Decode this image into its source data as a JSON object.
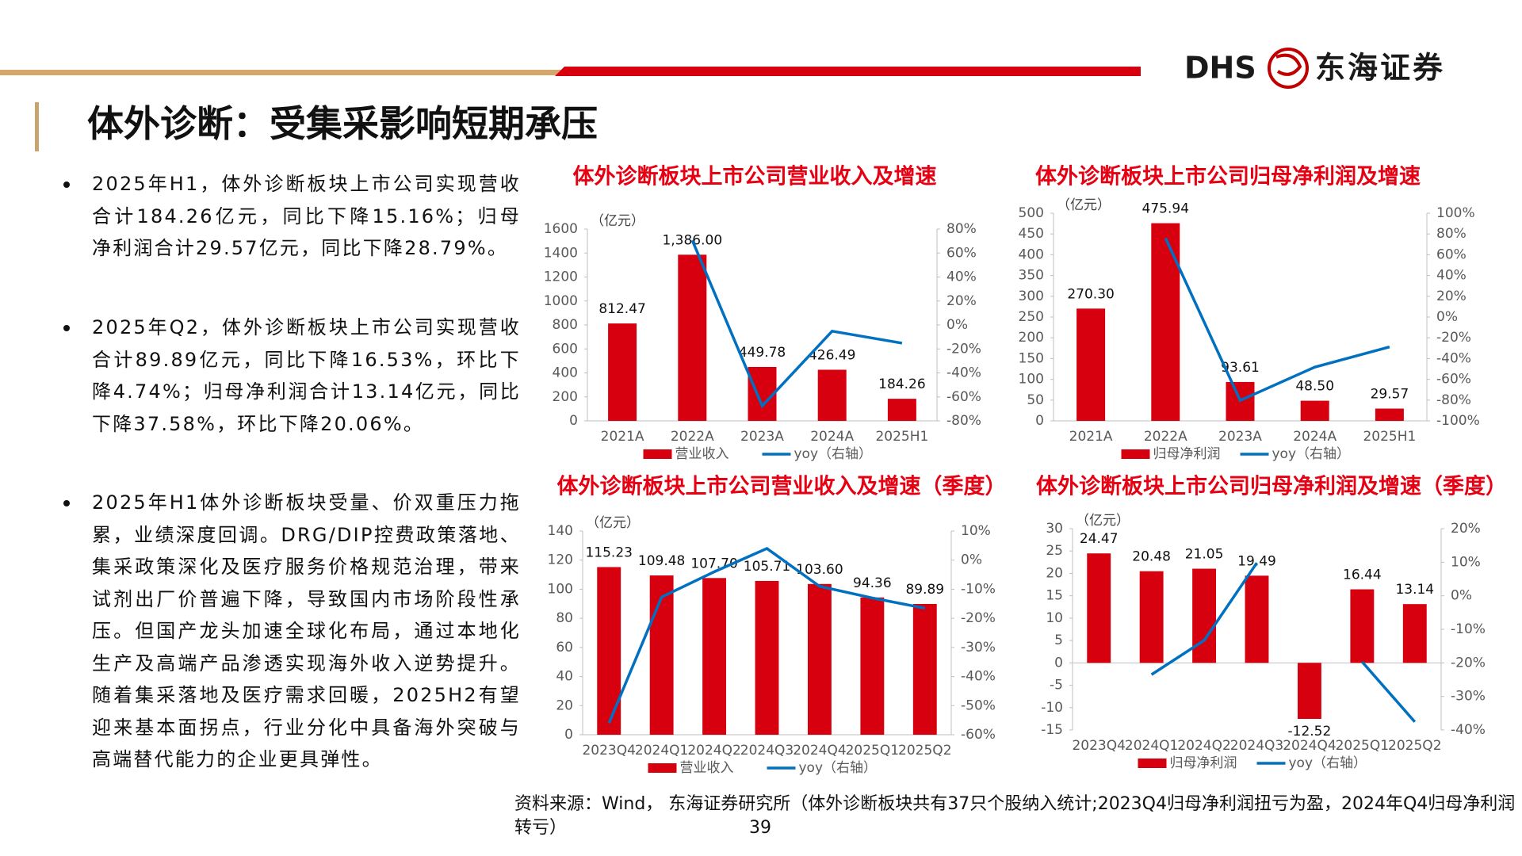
{
  "header": {
    "title": "体外诊断：受集采影响短期承压",
    "logo_en": "DHS",
    "logo_cn": "东海证券"
  },
  "bullets": [
    "2025年H1，体外诊断板块上市公司实现营收合计184.26亿元，同比下降15.16%；归母净利润合计29.57亿元，同比下降28.79%。",
    "2025年Q2，体外诊断板块上市公司实现营收合计89.89亿元，同比下降16.53%，环比下降4.74%；归母净利润合计13.14亿元，同比下降37.58%，环比下降20.06%。",
    "2025年H1体外诊断板块受量、价双重压力拖累，业绩深度回调。DRG/DIP控费政策落地、集采政策深化及医疗服务价格规范治理，带来试剂出厂价普遍下降，导致国内市场阶段性承压。但国产龙头加速全球化布局，通过本地化生产及高端产品渗透实现海外收入逆势提升。随着集采落地及医疗需求回暖，2025H2有望迎来基本面拐点，行业分化中具备海外突破与高端替代能力的企业更具弹性。"
  ],
  "source": "资料来源：Wind， 东海证券研究所（体外诊断板块共有37只个股纳入统计;2023Q4归母净利润扭亏为盈，2024年Q4归母净利润转亏）",
  "page_number": "39",
  "chart_data": [
    {
      "type": "bar_line",
      "title": "体外诊断板块上市公司营业收入及增速",
      "ylabel": "（亿元）",
      "categories": [
        "2021A",
        "2022A",
        "2023A",
        "2024A",
        "2025H1"
      ],
      "series": [
        {
          "name": "营业收入",
          "type": "bar",
          "color": "#d7000f",
          "values": [
            812.47,
            1386.0,
            449.78,
            426.49,
            184.26
          ],
          "value_labels": [
            "812.47",
            "1,386.00",
            "449.78",
            "426.49",
            "184.26"
          ]
        },
        {
          "name": "yoy（右轴）",
          "type": "line",
          "axis": "y2",
          "color": "#0070c0",
          "values": [
            null,
            70.59,
            -67.55,
            -5.18,
            -15.16
          ]
        }
      ],
      "ylim": [
        0,
        1600
      ],
      "yticks": [
        0,
        200,
        400,
        600,
        800,
        1000,
        1200,
        1400,
        1600
      ],
      "y2lim": [
        -80,
        80
      ],
      "y2ticks": [
        {
          "value": -80,
          "label": "-80%"
        },
        {
          "value": -60,
          "label": "-60%"
        },
        {
          "value": -40,
          "label": "-40%"
        },
        {
          "value": -20,
          "label": "-20%"
        },
        {
          "value": 0,
          "label": "0%"
        },
        {
          "value": 20,
          "label": "20%"
        },
        {
          "value": 40,
          "label": "40%"
        },
        {
          "value": 60,
          "label": "60%"
        },
        {
          "value": 80,
          "label": "80%"
        }
      ]
    },
    {
      "type": "bar_line",
      "title": "体外诊断板块上市公司归母净利润及增速",
      "ylabel": "（亿元）",
      "categories": [
        "2021A",
        "2022A",
        "2023A",
        "2024A",
        "2025H1"
      ],
      "series": [
        {
          "name": "归母净利润",
          "type": "bar",
          "color": "#d7000f",
          "values": [
            270.3,
            475.94,
            93.61,
            48.5,
            29.57
          ],
          "value_labels": [
            "270.30",
            "475.94",
            "93.61",
            "48.50",
            "29.57"
          ]
        },
        {
          "name": "yoy（右轴）",
          "type": "line",
          "axis": "y2",
          "color": "#0070c0",
          "values": [
            null,
            76.08,
            -80.33,
            -48.19,
            -28.79
          ]
        }
      ],
      "ylim": [
        0,
        500
      ],
      "yticks": [
        0,
        50,
        100,
        150,
        200,
        250,
        300,
        350,
        400,
        450,
        500
      ],
      "y2lim": [
        -100,
        100
      ],
      "y2ticks": [
        {
          "value": -100,
          "label": "-100%"
        },
        {
          "value": -80,
          "label": "-80%"
        },
        {
          "value": -60,
          "label": "-60%"
        },
        {
          "value": -40,
          "label": "-40%"
        },
        {
          "value": -20,
          "label": "-20%"
        },
        {
          "value": 0,
          "label": "0%"
        },
        {
          "value": 20,
          "label": "20%"
        },
        {
          "value": 40,
          "label": "40%"
        },
        {
          "value": 60,
          "label": "60%"
        },
        {
          "value": 80,
          "label": "80%"
        },
        {
          "value": 100,
          "label": "100%"
        }
      ]
    },
    {
      "type": "bar_line",
      "title": "体外诊断板块上市公司营业收入及增速（季度）",
      "ylabel": "（亿元）",
      "categories": [
        "2023Q4",
        "2024Q1",
        "2024Q2",
        "2024Q3",
        "2024Q4",
        "2025Q1",
        "2025Q2"
      ],
      "series": [
        {
          "name": "营业收入",
          "type": "bar",
          "color": "#d7000f",
          "values": [
            115.23,
            109.48,
            107.7,
            105.71,
            103.6,
            94.36,
            89.89
          ],
          "value_labels": [
            "115.23",
            "109.48",
            "107.70",
            "105.71",
            "103.60",
            "94.36",
            "89.89"
          ]
        },
        {
          "name": "yoy（右轴）",
          "type": "line",
          "axis": "y2",
          "color": "#0070c0",
          "values": [
            -56,
            -12.7,
            -4,
            4,
            -9,
            -13,
            -16.53
          ]
        }
      ],
      "ylim": [
        0,
        140
      ],
      "yticks": [
        0,
        20,
        40,
        60,
        80,
        100,
        120,
        140
      ],
      "y2lim": [
        -60,
        10
      ],
      "y2ticks": [
        {
          "value": -60,
          "label": "-60%"
        },
        {
          "value": -50,
          "label": "-50%"
        },
        {
          "value": -40,
          "label": "-40%"
        },
        {
          "value": -30,
          "label": "-30%"
        },
        {
          "value": -20,
          "label": "-20%"
        },
        {
          "value": -10,
          "label": "-10%"
        },
        {
          "value": 0,
          "label": "0%"
        },
        {
          "value": 10,
          "label": "10%"
        }
      ]
    },
    {
      "type": "bar_line",
      "title": "体外诊断板块上市公司归母净利润及增速（季度）",
      "ylabel": "（亿元）",
      "categories": [
        "2023Q4",
        "2024Q1",
        "2024Q2",
        "2024Q3",
        "2024Q4",
        "2025Q1",
        "2025Q2"
      ],
      "series": [
        {
          "name": "归母净利润",
          "type": "bar",
          "color": "#d7000f",
          "values": [
            24.47,
            20.48,
            21.05,
            19.49,
            -12.52,
            16.44,
            13.14
          ]
        },
        {
          "name": "yoy（右轴）",
          "type": "line",
          "axis": "y2",
          "color": "#0070c0",
          "values": [
            null,
            -23.5,
            -13.3,
            9.8,
            null,
            -19.7,
            -37.58
          ]
        }
      ],
      "ylim": [
        -15,
        30
      ],
      "yticks": [
        -15,
        -10,
        -5,
        0,
        5,
        10,
        15,
        20,
        25,
        30
      ],
      "y2lim": [
        -40,
        20
      ],
      "y2ticks": [
        {
          "value": -40,
          "label": "-40%"
        },
        {
          "value": -30,
          "label": "-30%"
        },
        {
          "value": -20,
          "label": "-20%"
        },
        {
          "value": -10,
          "label": "-10%"
        },
        {
          "value": 0,
          "label": "0%"
        },
        {
          "value": 10,
          "label": "10%"
        },
        {
          "value": 20,
          "label": "20%"
        }
      ]
    }
  ]
}
